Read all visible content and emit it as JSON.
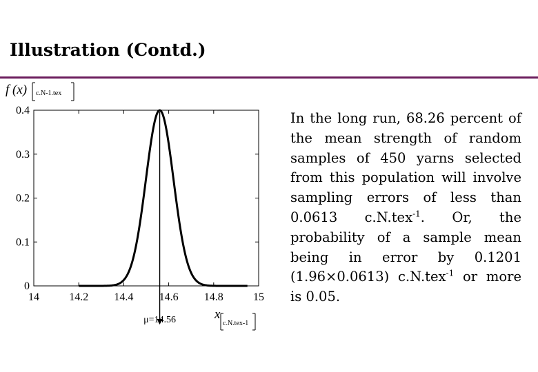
{
  "slide": {
    "title": "Illustration (Contd.)",
    "body": {
      "p1": "In the long run, 68.26 percent of the mean strength of random samples of 450 yarns selected from this population will involve sampling errors of less than 0.0613 c.N.tex",
      "sup1": "-1",
      "p2": ". Or, the probability of a sample mean being in error by 0.1201 (1.96×0.0613) c.N.tex",
      "sup2": "-1",
      "p3": " or more is 0.05."
    }
  },
  "chart_data": {
    "type": "line",
    "x_ticks": [
      "14",
      "14.2",
      "14.4",
      "14.6",
      "14.8",
      "15"
    ],
    "y_ticks": [
      "0",
      "0.1",
      "0.2",
      "0.3",
      "0.4"
    ],
    "xlim": [
      14,
      15
    ],
    "ylim": [
      0,
      0.4
    ],
    "grid": false,
    "ylabel_fx": "f (x)",
    "ylabel_unit": "c.N-1.tex",
    "xlabel_x": "x",
    "xlabel_unit": "c.N.tex-1",
    "mean_label": "μ=14.56",
    "mean": 14.56,
    "sd": 0.0613,
    "peak": 0.4,
    "x_range": [
      14.2,
      14.95
    ],
    "mean_arrow_y": -0.0815
  }
}
